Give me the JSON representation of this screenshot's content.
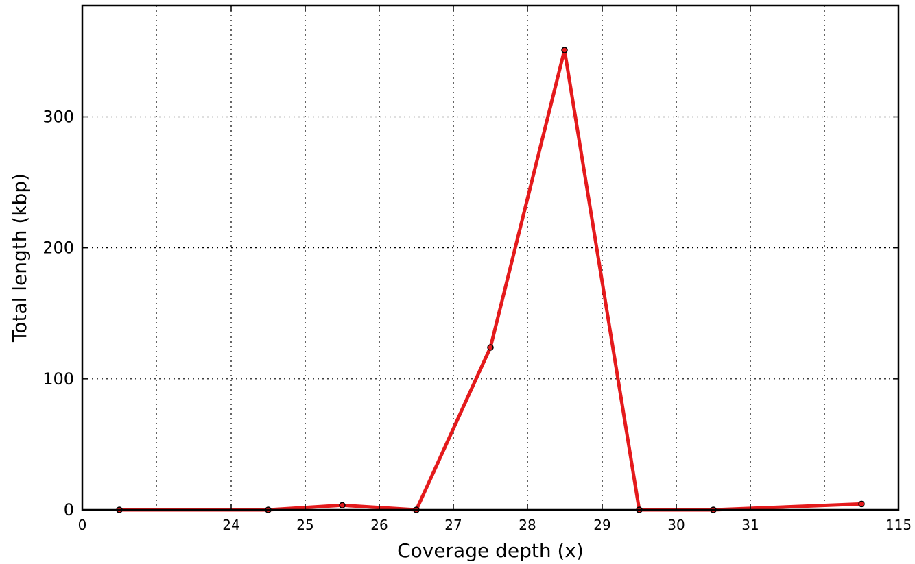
{
  "chart_data": {
    "type": "line",
    "title": "",
    "xlabel": "Coverage depth (x)",
    "ylabel": "Total length (kbp)",
    "x_tick_labels": [
      "0",
      "24",
      "25",
      "26",
      "27",
      "28",
      "29",
      "30",
      "31",
      "115"
    ],
    "y_ticks": [
      0,
      100,
      200,
      300
    ],
    "ylim": [
      0,
      385
    ],
    "grid": true,
    "series": [
      {
        "color": "#e41a1c",
        "points": [
          {
            "x": "<23",
            "y": 0
          },
          {
            "x": "23.5–24.5",
            "y": 0
          },
          {
            "x": "24.5–25.5",
            "y": 3.5
          },
          {
            "x": "25.5–26.5",
            "y": 0
          },
          {
            "x": "26.5–27.5",
            "y": 124
          },
          {
            "x": "27.5–28.5",
            "y": 351
          },
          {
            "x": "28.5–29.5",
            "y": 0
          },
          {
            "x": "29.5–30.5",
            "y": 0
          },
          {
            "x": ">31",
            "y": 4.5
          }
        ]
      }
    ]
  }
}
